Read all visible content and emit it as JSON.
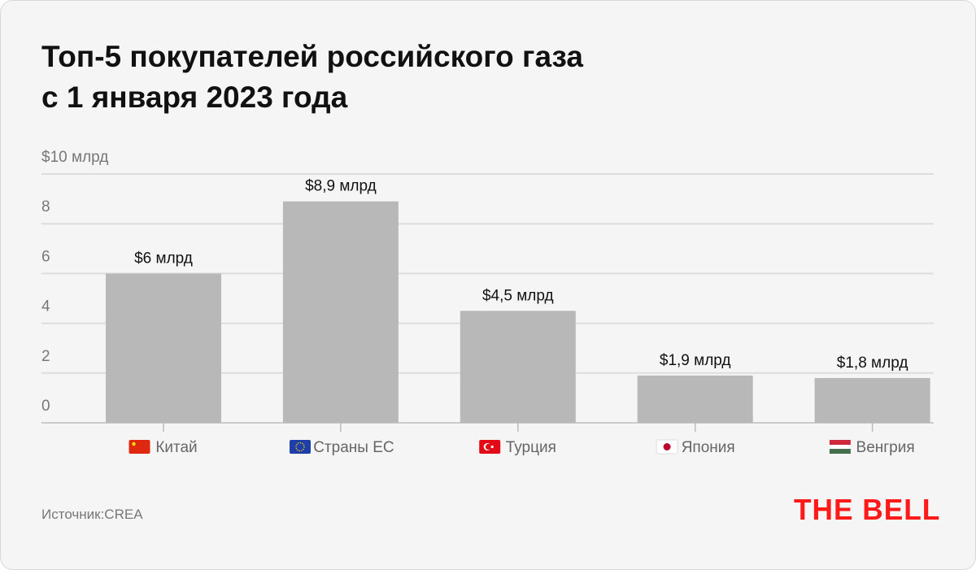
{
  "title_line1": "Топ-5 покупателей российского газа",
  "title_line2": "с 1 января 2023 года",
  "source": "Источник:CREA",
  "logo": "THE BELL.",
  "chart_data": {
    "type": "bar",
    "title": "Топ-5 покупателей российского газа с 1 января 2023 года",
    "categories": [
      "Китай",
      "Страны ЕС",
      "Турция",
      "Япония",
      "Венгрия"
    ],
    "flags": [
      "china-flag",
      "eu-flag",
      "turkey-flag",
      "japan-flag",
      "hungary-flag"
    ],
    "values": [
      6,
      8.9,
      4.5,
      1.9,
      1.8
    ],
    "data_labels": [
      "$6 млрд",
      "$8,9 млрд",
      "$4,5 млрд",
      "$1,9 млрд",
      "$1,8 млрд"
    ],
    "yticks": [
      0,
      2,
      4,
      6,
      8,
      10
    ],
    "ytick_labels": [
      "0",
      "2",
      "4",
      "6",
      "8",
      "$10 млрд"
    ],
    "ylim": [
      0,
      10
    ],
    "grid": true,
    "colors": {
      "bar": "#b8b8b8",
      "grid": "#dddddd",
      "text": "#111111",
      "axis_text": "#777777",
      "logo": "#ff1a1a"
    }
  }
}
